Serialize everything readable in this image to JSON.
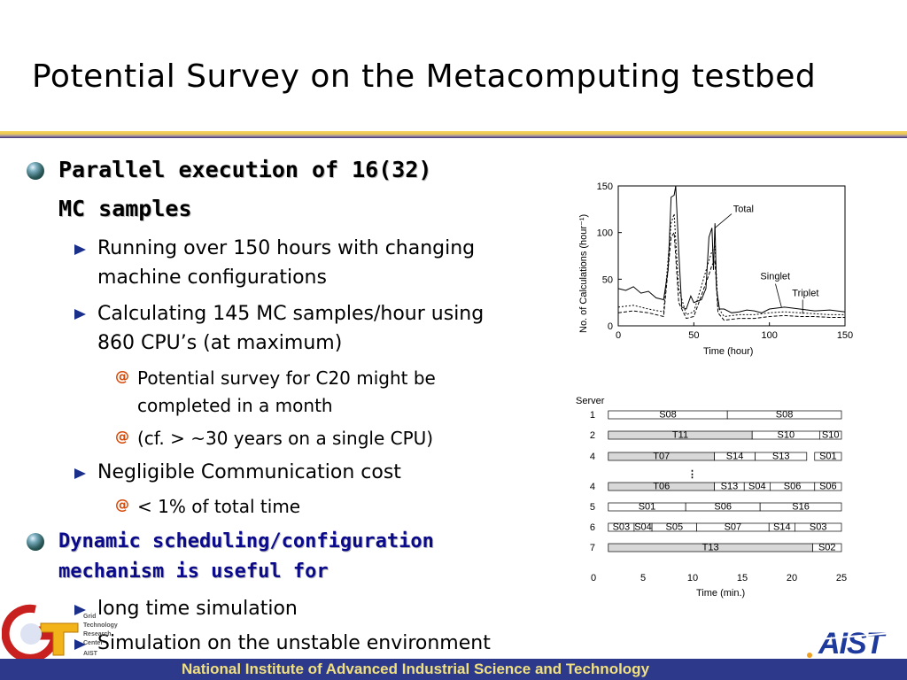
{
  "title": "Potential Survey on the Metacomputing  testbed",
  "bullets": {
    "b1_line1": "Parallel execution of 16(32)",
    "b1_line2": "MC samples",
    "b1_1a": "Running over 150 hours with changing",
    "b1_1b": "machine configurations",
    "b1_2a": "Calculating 145 MC samples/hour using",
    "b1_2b": "860 CPU’s (at maximum)",
    "b1_2_1a": "Potential survey for C20 might be",
    "b1_2_1b": "completed in a month",
    "b1_2_2": "(cf. > ~30 years on a single CPU)",
    "b1_3": "Negligible Communication cost",
    "b1_3_1": "< 1% of total time",
    "b2_line1": "Dynamic scheduling/configuration",
    "b2_line2": "mechanism is useful for",
    "b2_1": "long time simulation",
    "b2_2": "Simulation on the unstable environment"
  },
  "chart1": {
    "type": "line",
    "ylabel": "No. of Calculations (hour⁻¹)",
    "xlabel": "Time (hour)",
    "xlim": [
      0,
      150
    ],
    "ylim": [
      0,
      150
    ],
    "xticks": [
      "0",
      "50",
      "100",
      "150"
    ],
    "yticks": [
      "0",
      "50",
      "100",
      "150"
    ],
    "annotations": [
      "Total",
      "Singlet",
      "Triplet"
    ],
    "series": [
      {
        "name": "Total",
        "x": [
          0,
          5,
          10,
          15,
          20,
          25,
          30,
          33,
          35,
          37,
          38,
          40,
          42,
          45,
          48,
          50,
          55,
          58,
          60,
          62,
          63,
          64,
          65,
          67,
          70,
          75,
          80,
          85,
          90,
          95,
          100,
          110,
          120,
          130,
          140,
          150
        ],
        "y": [
          40,
          38,
          42,
          35,
          37,
          30,
          28,
          60,
          138,
          140,
          150,
          80,
          20,
          18,
          32,
          25,
          28,
          40,
          95,
          105,
          60,
          110,
          40,
          18,
          18,
          14,
          15,
          17,
          16,
          14,
          18,
          20,
          18,
          16,
          17,
          15
        ]
      },
      {
        "name": "Singlet",
        "x": [
          0,
          10,
          20,
          30,
          35,
          37,
          40,
          45,
          50,
          60,
          62,
          64,
          66,
          70,
          80,
          90,
          100,
          110,
          120,
          130,
          140,
          150
        ],
        "y": [
          20,
          22,
          18,
          15,
          110,
          120,
          40,
          12,
          15,
          70,
          80,
          85,
          20,
          10,
          12,
          12,
          14,
          15,
          14,
          13,
          12,
          12
        ]
      },
      {
        "name": "Triplet",
        "x": [
          0,
          10,
          20,
          30,
          35,
          37,
          40,
          45,
          50,
          60,
          62,
          64,
          66,
          70,
          80,
          90,
          100,
          110,
          120,
          130,
          140,
          150
        ],
        "y": [
          14,
          16,
          14,
          10,
          95,
          100,
          25,
          8,
          10,
          55,
          65,
          70,
          14,
          6,
          8,
          8,
          10,
          11,
          10,
          10,
          9,
          9
        ]
      }
    ]
  },
  "chart2": {
    "type": "gantt",
    "ylabel": "Server",
    "xlabel": "Time (min.)",
    "xlim": [
      0,
      25
    ],
    "xticks": [
      "0",
      "5",
      "10",
      "15",
      "20",
      "25"
    ],
    "dots": "⋮",
    "rows": [
      {
        "server": "1",
        "tasks": [
          {
            "name": "S08",
            "start": 1.5,
            "end": 13.5
          },
          {
            "name": "S08",
            "start": 13.5,
            "end": 25
          }
        ]
      },
      {
        "server": "2",
        "tasks": [
          {
            "name": "T11",
            "start": 1.5,
            "end": 16
          },
          {
            "name": "S10",
            "start": 16,
            "end": 22.8
          },
          {
            "name": "S10",
            "start": 22.8,
            "end": 25
          }
        ]
      },
      {
        "server": "4",
        "tasks": [
          {
            "name": "T07",
            "start": 1.5,
            "end": 12.2
          },
          {
            "name": "S14",
            "start": 12.2,
            "end": 16.3
          },
          {
            "name": "S13",
            "start": 16.3,
            "end": 21.5
          },
          {
            "name": "S01",
            "start": 22.3,
            "end": 25
          }
        ]
      },
      {
        "server": "4",
        "tasks": [
          {
            "name": "T06",
            "start": 1.5,
            "end": 12.2
          },
          {
            "name": "S13",
            "start": 12.2,
            "end": 15.2
          },
          {
            "name": "S04",
            "start": 15.2,
            "end": 17.8
          },
          {
            "name": "S06",
            "start": 17.8,
            "end": 22.3
          },
          {
            "name": "S06",
            "start": 22.3,
            "end": 25
          }
        ]
      },
      {
        "server": "5",
        "tasks": [
          {
            "name": "S01",
            "start": 1.5,
            "end": 9.3
          },
          {
            "name": "S06",
            "start": 9.3,
            "end": 16.8
          },
          {
            "name": "S16",
            "start": 16.8,
            "end": 25
          }
        ]
      },
      {
        "server": "6",
        "tasks": [
          {
            "name": "S03",
            "start": 1.5,
            "end": 4.1
          },
          {
            "name": "S04",
            "start": 4.1,
            "end": 5.9
          },
          {
            "name": "S05",
            "start": 5.9,
            "end": 10.4
          },
          {
            "name": "S07",
            "start": 10.4,
            "end": 17.7
          },
          {
            "name": "S14",
            "start": 17.7,
            "end": 20.3
          },
          {
            "name": "S03",
            "start": 20.3,
            "end": 25
          }
        ]
      },
      {
        "server": "7",
        "tasks": [
          {
            "name": "T13",
            "start": 1.5,
            "end": 22.1
          },
          {
            "name": "S02",
            "start": 22.1,
            "end": 25
          }
        ]
      }
    ]
  },
  "logo_left": {
    "lines": [
      "Grid",
      "Technology",
      "Research",
      "Center",
      "AIST"
    ]
  },
  "logo_right": "AIST",
  "footer": "National Institute of Advanced Industrial Science and Technology",
  "colors": {
    "footer_bg": "#2d3a8c",
    "footer_text": "#f0e080",
    "bullet_arrow": "#1a2f8a",
    "swirl": "#d64a0a",
    "title_rule": "#f0c94d"
  }
}
